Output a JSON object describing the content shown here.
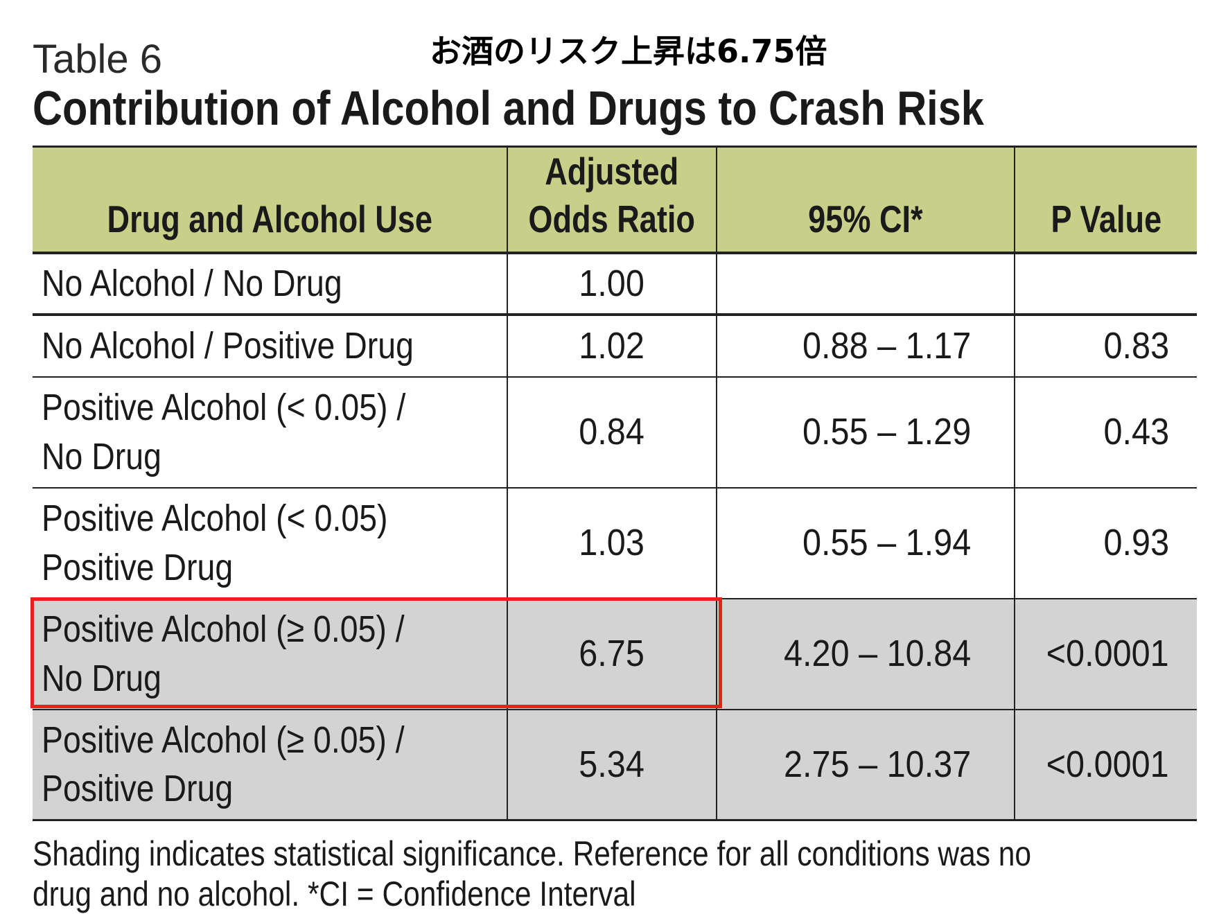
{
  "annotation": "お酒のリスク上昇は6.75倍",
  "table_number": "Table 6",
  "table_title": "Contribution of Alcohol and Drugs to Crash Risk",
  "columns": {
    "condition": "Drug and Alcohol Use",
    "odds_ratio_line1": "Adjusted",
    "odds_ratio_line2": "Odds Ratio",
    "ci": "95% CI*",
    "p_value": "P Value"
  },
  "rows": [
    {
      "condition_line1": "No Alcohol / No Drug",
      "condition_line2": "",
      "odds_ratio": "1.00",
      "ci": "",
      "p_value": "",
      "shaded": false
    },
    {
      "condition_line1": "No Alcohol / Positive Drug",
      "condition_line2": "",
      "odds_ratio": "1.02",
      "ci": "0.88 – 1.17",
      "p_value": "0.83",
      "shaded": false
    },
    {
      "condition_line1": "Positive Alcohol (< 0.05) /",
      "condition_line2": "No Drug",
      "odds_ratio": "0.84",
      "ci": "0.55 – 1.29",
      "p_value": "0.43",
      "shaded": false
    },
    {
      "condition_line1": "Positive Alcohol (< 0.05)",
      "condition_line2": "Positive Drug",
      "odds_ratio": "1.03",
      "ci": "0.55 – 1.94",
      "p_value": "0.93",
      "shaded": false
    },
    {
      "condition_line1": "Positive Alcohol (≥ 0.05) /",
      "condition_line2": "No Drug",
      "odds_ratio": "6.75",
      "ci": "4.20 – 10.84",
      "p_value": "<0.0001",
      "shaded": true,
      "highlighted": true
    },
    {
      "condition_line1": "Positive Alcohol (≥ 0.05) /",
      "condition_line2": "Positive Drug",
      "odds_ratio": "5.34",
      "ci": "2.75 – 10.37",
      "p_value": "<0.0001",
      "shaded": true
    }
  ],
  "footnote_line1": "Shading indicates statistical significance. Reference for all conditions was no",
  "footnote_line2": "drug and no alcohol.   *CI = Confidence Interval",
  "colors": {
    "header_background": "#c8cf88",
    "shaded_row": "#d3d3d3",
    "highlight_border": "#e5231b"
  }
}
